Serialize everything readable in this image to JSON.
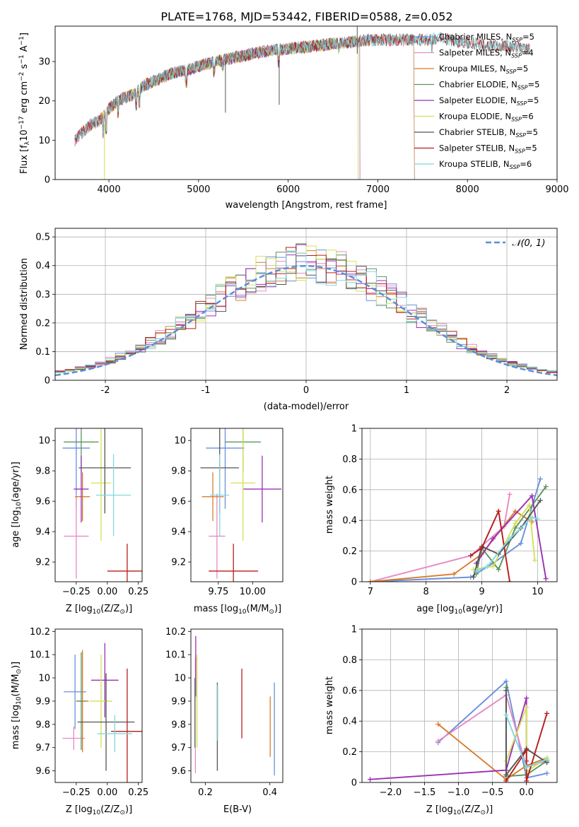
{
  "figure": {
    "title": "PLATE=1768, MJD=53442, FIBERID=0588, z=0.052"
  },
  "colors": {
    "Chabrier MILES": "#6a8fdc",
    "Salpeter MILES": "#e78ac3",
    "Kroupa MILES": "#d97c2b",
    "Chabrier ELODIE": "#5f9460",
    "Salpeter ELODIE": "#9b30b4",
    "Kroupa ELODIE": "#d4e157",
    "Chabrier STELIB": "#555555",
    "Salpeter STELIB": "#b71c1c",
    "Kroupa STELIB": "#80d8e0",
    "gaussian": "#5b8bd6"
  },
  "chart_data": [
    {
      "id": "spectrum",
      "type": "line",
      "xlabel": "wavelength [Angstrom, rest frame]",
      "ylabel": "Flux [f$_\\lambda$10$^{-17}$ erg cm$^{-2}$ s$^{-1}$ A$^{-1}$]",
      "ylabel_parts": [
        "Flux [f",
        "λ",
        "10",
        "−17",
        " erg cm",
        "−2",
        " s",
        "−1",
        " A",
        "−1",
        "]"
      ],
      "xlim": [
        3400,
        9000
      ],
      "ylim": [
        0,
        39
      ],
      "xticks": [
        4000,
        5000,
        6000,
        7000,
        8000,
        9000
      ],
      "yticks": [
        0,
        10,
        20,
        30
      ],
      "legend_position": "upper right",
      "continuum": {
        "x": [
          3620,
          3700,
          3800,
          3900,
          4000,
          4100,
          4200,
          4300,
          4400,
          4500,
          4700,
          4900,
          5100,
          5300,
          5500,
          5700,
          5900,
          6100,
          6300,
          6500,
          6700,
          6900,
          7100,
          7300,
          7500,
          7700,
          7900,
          8100,
          8300,
          8500,
          8700
        ],
        "y": [
          10,
          12,
          14,
          15,
          18,
          20,
          21,
          22,
          24,
          25,
          27,
          28,
          29.5,
          30.5,
          31.5,
          32.5,
          33,
          33.5,
          34,
          34.5,
          35,
          35.5,
          35.5,
          35.5,
          35.5,
          36,
          35,
          34.5,
          34,
          34,
          33
        ]
      },
      "series": [
        {
          "name": "Chabrier MILES",
          "nssp": "5",
          "xrange": [
            3620,
            7400
          ]
        },
        {
          "name": "Salpeter MILES",
          "nssp": "4",
          "xrange": [
            3620,
            7400
          ]
        },
        {
          "name": "Kroupa MILES",
          "nssp": "5",
          "xrange": [
            3620,
            7400
          ]
        },
        {
          "name": "Chabrier ELODIE",
          "nssp": "5",
          "xrange": [
            3900,
            6800
          ]
        },
        {
          "name": "Salpeter ELODIE",
          "nssp": "5",
          "xrange": [
            3900,
            6800
          ]
        },
        {
          "name": "Kroupa ELODIE",
          "nssp": "6",
          "xrange": [
            3900,
            6800
          ]
        },
        {
          "name": "Chabrier STELIB",
          "nssp": "5",
          "xrange": [
            3620,
            8700
          ]
        },
        {
          "name": "Salpeter STELIB",
          "nssp": "5",
          "xrange": [
            3620,
            8700
          ]
        },
        {
          "name": "Kroupa STELIB",
          "nssp": "6",
          "xrange": [
            3620,
            8700
          ]
        }
      ]
    },
    {
      "id": "residuals",
      "type": "histogram",
      "xlabel": "(data-model)/error",
      "ylabel": "Normed distribution",
      "xlim": [
        -2.5,
        2.5
      ],
      "ylim": [
        0,
        0.53
      ],
      "xticks": [
        -2,
        -1,
        0,
        1,
        2
      ],
      "yticks": [
        0.0,
        0.1,
        0.2,
        0.3,
        0.4,
        0.5
      ],
      "grid": true,
      "legend_position": "upper right",
      "gaussian_label": "𝒩(0, 1)",
      "bin_width": 0.1
    },
    {
      "id": "age-Z",
      "type": "errorbar",
      "xlabel": "Z [log$_{10}$(Z/Z$_\\odot$)]",
      "xlabel_parts": [
        "Z [log",
        "10",
        "(Z/Z",
        "⊙",
        ")]"
      ],
      "ylabel": "age  [log$_{10}$(age/yr)]",
      "ylabel_parts": [
        "age  [log",
        "10",
        "(age/yr)]"
      ],
      "xlim": [
        -0.42,
        0.28
      ],
      "ylim": [
        9.07,
        10.08
      ],
      "xticks": [
        -0.25,
        0.0,
        0.25
      ],
      "xtick_labels": [
        "−0.25",
        "0.00",
        "0.25"
      ],
      "yticks": [
        9.2,
        9.4,
        9.6,
        9.8,
        10.0
      ],
      "points": [
        {
          "series": "Chabrier MILES",
          "x": -0.25,
          "xerr": 0.11,
          "y": 9.95,
          "yerr": 0.4
        },
        {
          "series": "Salpeter MILES",
          "x": -0.25,
          "xerr": 0.1,
          "y": 9.37,
          "yerr": 0.28
        },
        {
          "series": "Kroupa MILES",
          "x": -0.2,
          "xerr": 0.06,
          "y": 9.63,
          "yerr": 0.16
        },
        {
          "series": "Chabrier ELODIE",
          "x": -0.21,
          "xerr": 0.14,
          "y": 9.99,
          "yerr": 0.2
        },
        {
          "series": "Salpeter ELODIE",
          "x": -0.21,
          "xerr": 0.06,
          "y": 9.68,
          "yerr": 0.22
        },
        {
          "series": "Kroupa ELODIE",
          "x": -0.05,
          "xerr": 0.08,
          "y": 9.72,
          "yerr": 0.38
        },
        {
          "series": "Chabrier STELIB",
          "x": -0.02,
          "xerr": 0.21,
          "y": 9.82,
          "yerr": 0.3
        },
        {
          "series": "Salpeter STELIB",
          "x": 0.16,
          "xerr": 0.16,
          "y": 9.14,
          "yerr": 0.18
        },
        {
          "series": "Kroupa STELIB",
          "x": 0.05,
          "xerr": 0.14,
          "y": 9.64,
          "yerr": 0.27
        }
      ]
    },
    {
      "id": "age-mass",
      "type": "errorbar",
      "xlabel": "mass [log$_{10}$(M/M$_\\odot$)]",
      "xlabel_parts": [
        "mass [log",
        "10",
        "(M/M",
        "⊙",
        ")]"
      ],
      "xlim": [
        9.55,
        10.22
      ],
      "ylim": [
        9.07,
        10.08
      ],
      "xticks": [
        9.75,
        10.0
      ],
      "xtick_labels": [
        "9.75",
        "10.00"
      ],
      "yticks": [
        9.2,
        9.4,
        9.6,
        9.8,
        10.0
      ],
      "points": [
        {
          "series": "Chabrier MILES",
          "x": 9.8,
          "xerr": 0.14,
          "y": 9.95,
          "yerr": 0.4
        },
        {
          "series": "Salpeter MILES",
          "x": 9.74,
          "xerr": 0.06,
          "y": 9.37,
          "yerr": 0.28
        },
        {
          "series": "Kroupa MILES",
          "x": 9.71,
          "xerr": 0.08,
          "y": 9.63,
          "yerr": 0.16
        },
        {
          "series": "Chabrier ELODIE",
          "x": 9.93,
          "xerr": 0.13,
          "y": 9.99,
          "yerr": 0.2
        },
        {
          "series": "Salpeter ELODIE",
          "x": 10.07,
          "xerr": 0.14,
          "y": 9.68,
          "yerr": 0.22
        },
        {
          "series": "Kroupa ELODIE",
          "x": 9.93,
          "xerr": 0.09,
          "y": 9.72,
          "yerr": 0.38
        },
        {
          "series": "Chabrier STELIB",
          "x": 9.76,
          "xerr": 0.14,
          "y": 9.82,
          "yerr": 0.3
        },
        {
          "series": "Salpeter STELIB",
          "x": 9.86,
          "xerr": 0.18,
          "y": 9.14,
          "yerr": 0.18
        },
        {
          "series": "Kroupa STELIB",
          "x": 9.76,
          "xerr": 0.07,
          "y": 9.64,
          "yerr": 0.27
        }
      ]
    },
    {
      "id": "weight-age",
      "type": "line",
      "xlabel": "age  [log$_{10}$(age/yr)]",
      "xlabel_parts": [
        "age  [log",
        "10",
        "(age/yr)]"
      ],
      "ylabel": "mass weight",
      "xlim": [
        6.85,
        10.35
      ],
      "ylim": [
        0,
        1.0
      ],
      "xticks": [
        7,
        8,
        9,
        10
      ],
      "yticks": [
        0.0,
        0.2,
        0.4,
        0.6,
        0.8,
        1.0
      ],
      "grid": true,
      "series": [
        {
          "name": "Chabrier MILES",
          "x": [
            7.0,
            8.8,
            9.2,
            9.7,
            10.05
          ],
          "y": [
            0.0,
            0.03,
            0.12,
            0.25,
            0.67
          ]
        },
        {
          "name": "Salpeter MILES",
          "x": [
            7.0,
            8.8,
            9.4,
            9.5
          ],
          "y": [
            0.0,
            0.17,
            0.36,
            0.57
          ]
        },
        {
          "name": "Kroupa MILES",
          "x": [
            7.0,
            8.5,
            9.0,
            9.6,
            9.9
          ],
          "y": [
            0.0,
            0.05,
            0.18,
            0.46,
            0.39
          ]
        },
        {
          "name": "Chabrier ELODIE",
          "x": [
            8.9,
            9.0,
            9.3,
            9.6,
            10.15
          ],
          "y": [
            0.05,
            0.22,
            0.08,
            0.35,
            0.62
          ]
        },
        {
          "name": "Salpeter ELODIE",
          "x": [
            8.9,
            9.2,
            9.9,
            10.15
          ],
          "y": [
            0.12,
            0.28,
            0.56,
            0.02
          ]
        },
        {
          "name": "Kroupa ELODIE",
          "x": [
            8.85,
            9.2,
            9.6,
            9.85,
            9.95
          ],
          "y": [
            0.08,
            0.1,
            0.38,
            0.5,
            0.14
          ]
        },
        {
          "name": "Chabrier STELIB",
          "x": [
            8.85,
            9.0,
            9.3,
            9.7,
            10.05
          ],
          "y": [
            0.03,
            0.23,
            0.18,
            0.35,
            0.53
          ]
        },
        {
          "name": "Salpeter STELIB",
          "x": [
            8.8,
            9.0,
            9.3,
            9.5
          ],
          "y": [
            0.17,
            0.22,
            0.46,
            0.0
          ]
        },
        {
          "name": "Kroupa STELIB",
          "x": [
            8.9,
            9.1,
            9.5,
            9.9,
            10.0
          ],
          "y": [
            0.07,
            0.1,
            0.28,
            0.42,
            0.41
          ]
        }
      ]
    },
    {
      "id": "mass-Z",
      "type": "errorbar",
      "xlabel": "Z [log$_{10}$(Z/Z$_\\odot$)]",
      "xlabel_parts": [
        "Z [log",
        "10",
        "(Z/Z",
        "⊙",
        ")]"
      ],
      "ylabel": "mass [log$_{10}$(M/M$_\\odot$)]",
      "ylabel_parts": [
        "mass [log",
        "10",
        "(M/M",
        "⊙",
        ")]"
      ],
      "xlim": [
        -0.42,
        0.28
      ],
      "ylim": [
        9.55,
        10.21
      ],
      "xticks": [
        -0.25,
        0.0,
        0.25
      ],
      "xtick_labels": [
        "−0.25",
        "0.00",
        "0.25"
      ],
      "yticks": [
        9.6,
        9.7,
        9.8,
        9.9,
        10.0,
        10.1,
        10.2
      ],
      "points": [
        {
          "series": "Chabrier MILES",
          "x": -0.26,
          "xerr": 0.09,
          "y": 9.94,
          "yerr": 0.16
        },
        {
          "series": "Salpeter MILES",
          "x": -0.27,
          "xerr": 0.09,
          "y": 9.74,
          "yerr": 0.05
        },
        {
          "series": "Kroupa MILES",
          "x": -0.2,
          "xerr": 0.05,
          "y": 9.9,
          "yerr": 0.22
        },
        {
          "series": "Chabrier ELODIE",
          "x": -0.21,
          "xerr": 0.04,
          "y": 9.9,
          "yerr": 0.21
        },
        {
          "series": "Salpeter ELODIE",
          "x": -0.02,
          "xerr": 0.11,
          "y": 9.99,
          "yerr": 0.16
        },
        {
          "series": "Kroupa ELODIE",
          "x": -0.05,
          "xerr": 0.09,
          "y": 9.9,
          "yerr": 0.2
        },
        {
          "series": "Chabrier STELIB",
          "x": -0.01,
          "xerr": 0.23,
          "y": 9.81,
          "yerr": 0.21
        },
        {
          "series": "Salpeter STELIB",
          "x": 0.16,
          "xerr": 0.13,
          "y": 9.77,
          "yerr": 0.27
        },
        {
          "series": "Kroupa STELIB",
          "x": 0.06,
          "xerr": 0.14,
          "y": 9.76,
          "yerr": 0.08
        }
      ]
    },
    {
      "id": "mass-EBV",
      "type": "errorbar",
      "xlabel": "E(B-V)",
      "xlim": [
        0.155,
        0.44
      ],
      "ylim": [
        9.55,
        10.21
      ],
      "xticks": [
        0.2,
        0.4
      ],
      "xtick_labels": [
        "0.2",
        "0.4"
      ],
      "yticks": [
        9.6,
        9.7,
        9.8,
        9.9,
        10.0,
        10.1,
        10.2
      ],
      "points": [
        {
          "series": "Chabrier MILES",
          "x": 0.414,
          "xerr": 0,
          "y": 9.78,
          "yerr": 0.2
        },
        {
          "series": "Salpeter MILES",
          "x": 0.169,
          "xerr": 0,
          "y": 9.84,
          "yerr": 0.25
        },
        {
          "series": "Kroupa MILES",
          "x": 0.401,
          "xerr": 0,
          "y": 9.79,
          "yerr": 0.13
        },
        {
          "series": "Chabrier ELODIE",
          "x": 0.167,
          "xerr": 0,
          "y": 9.85,
          "yerr": 0.15
        },
        {
          "series": "Salpeter ELODIE",
          "x": 0.17,
          "xerr": 0,
          "y": 10.05,
          "yerr": 0.13
        },
        {
          "series": "Kroupa ELODIE",
          "x": 0.174,
          "xerr": 0,
          "y": 9.9,
          "yerr": 0.2
        },
        {
          "series": "Chabrier STELIB",
          "x": 0.237,
          "xerr": 0,
          "y": 9.79,
          "yerr": 0.19
        },
        {
          "series": "Salpeter STELIB",
          "x": 0.313,
          "xerr": 0,
          "y": 9.89,
          "yerr": 0.15
        },
        {
          "series": "Kroupa STELIB",
          "x": 0.238,
          "xerr": 0,
          "y": 9.85,
          "yerr": 0.12
        }
      ]
    },
    {
      "id": "weight-Z",
      "type": "line",
      "xlabel": "Z [log$_{10}$(Z/Z$_\\odot$)]",
      "xlabel_parts": [
        "Z [log",
        "10",
        "(Z/Z",
        "⊙",
        ")]"
      ],
      "ylabel": "mass weight",
      "xlim": [
        -2.42,
        0.45
      ],
      "ylim": [
        0,
        1.0
      ],
      "xticks": [
        -2.0,
        -1.5,
        -1.0,
        -0.5,
        0.0
      ],
      "xtick_labels": [
        "−2.0",
        "−1.5",
        "−1.0",
        "−0.5",
        "0.0"
      ],
      "yticks": [
        0.0,
        0.2,
        0.4,
        0.6,
        0.8,
        1.0
      ],
      "grid": true,
      "series": [
        {
          "name": "Chabrier MILES",
          "x": [
            -1.3,
            -0.3,
            0.0,
            0.3
          ],
          "y": [
            0.26,
            0.66,
            0.03,
            0.06
          ]
        },
        {
          "name": "Salpeter MILES",
          "x": [
            -1.3,
            -0.3,
            0.0,
            0.3
          ],
          "y": [
            0.27,
            0.57,
            0.1,
            0.14
          ]
        },
        {
          "name": "Kroupa MILES",
          "x": [
            -1.3,
            -0.3,
            0.0,
            0.3
          ],
          "y": [
            0.38,
            0.02,
            0.11,
            0.16
          ]
        },
        {
          "name": "Chabrier ELODIE",
          "x": [
            -0.3,
            -0.3,
            0.0,
            0.3
          ],
          "y": [
            0.62,
            0.04,
            0.05,
            0.14
          ]
        },
        {
          "name": "Salpeter ELODIE",
          "x": [
            -2.3,
            -0.3,
            0.0,
            0.0
          ],
          "y": [
            0.02,
            0.08,
            0.55,
            0.14
          ]
        },
        {
          "name": "Kroupa ELODIE",
          "x": [
            -0.3,
            0.0,
            0.0,
            0.3
          ],
          "y": [
            0.14,
            0.49,
            0.07,
            0.16
          ]
        },
        {
          "name": "Chabrier STELIB",
          "x": [
            -0.3,
            -0.3,
            0.0,
            0.3
          ],
          "y": [
            0.6,
            0.05,
            0.22,
            0.13
          ]
        },
        {
          "name": "Salpeter STELIB",
          "x": [
            -0.3,
            0.0,
            0.0,
            0.3
          ],
          "y": [
            0.01,
            0.21,
            0.01,
            0.45
          ]
        },
        {
          "name": "Kroupa STELIB",
          "x": [
            -0.3,
            0.0,
            0.3
          ],
          "y": [
            0.44,
            0.1,
            0.15
          ]
        }
      ]
    }
  ]
}
